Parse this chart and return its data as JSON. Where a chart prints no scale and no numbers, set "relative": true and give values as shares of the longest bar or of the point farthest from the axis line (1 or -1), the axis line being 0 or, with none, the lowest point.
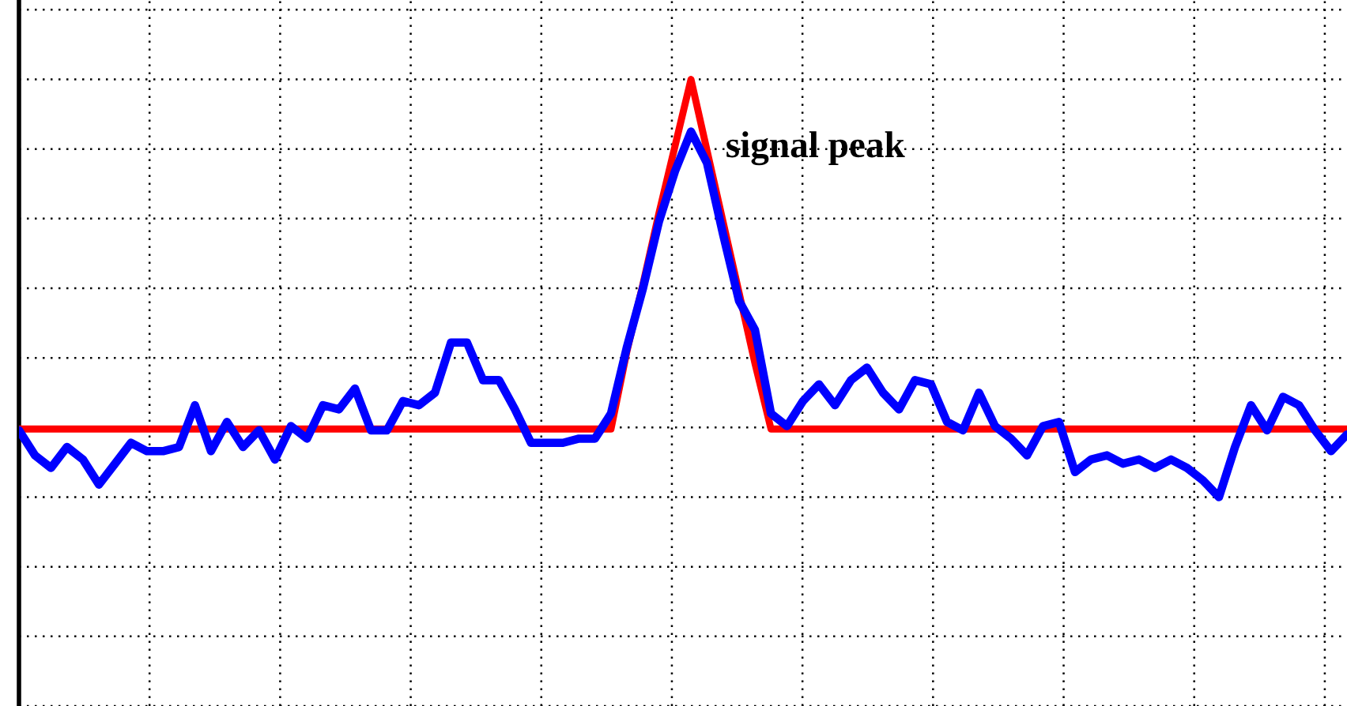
{
  "chart_data": {
    "type": "line",
    "relative": true,
    "grid": true,
    "line_style": "solid",
    "categories": [
      null,
      null,
      null,
      null,
      null,
      null,
      null,
      null,
      null,
      null,
      null,
      null,
      null,
      null,
      null,
      null,
      null,
      null,
      null,
      null,
      null,
      null,
      null,
      null,
      null,
      null,
      null,
      null,
      null,
      null,
      null,
      null,
      null,
      null,
      null,
      null,
      null,
      null,
      null,
      null,
      null,
      null,
      null,
      null,
      null,
      null,
      null,
      null,
      null,
      null,
      null,
      null,
      null,
      null,
      null,
      null,
      null,
      null,
      null,
      null,
      null,
      null,
      null,
      null,
      null,
      null,
      null,
      null,
      null,
      null,
      null,
      null,
      null,
      null,
      null,
      null,
      null,
      null,
      null,
      null,
      null,
      null,
      null,
      null
    ],
    "series": [
      {
        "color": "#ff0000",
        "values": [
          0.163,
          0.163,
          0.163,
          0.163,
          0.163,
          0.163,
          0.163,
          0.163,
          0.163,
          0.163,
          0.163,
          0.163,
          0.163,
          0.163,
          0.163,
          0.163,
          0.163,
          0.163,
          0.163,
          0.163,
          0.163,
          0.163,
          0.163,
          0.163,
          0.163,
          0.163,
          0.163,
          0.163,
          0.163,
          0.163,
          0.163,
          0.163,
          0.163,
          0.163,
          0.163,
          0.163,
          0.163,
          0.163,
          0.35,
          0.51,
          0.68,
          0.84,
          1,
          0.83,
          0.66,
          0.49,
          0.32,
          0.163,
          0.163,
          0.163,
          0.163,
          0.163,
          0.163,
          0.163,
          0.163,
          0.163,
          0.163,
          0.163,
          0.163,
          0.163,
          0.163,
          0.163,
          0.163,
          0.163,
          0.163,
          0.163,
          0.163,
          0.163,
          0.163,
          0.163,
          0.163,
          0.163,
          0.163,
          0.163,
          0.163,
          0.163,
          0.163,
          0.163,
          0.163,
          0.163,
          0.163,
          0.163,
          0.163,
          0.163
        ]
      },
      {
        "color": "#0000ff",
        "values": [
          0.16,
          0.1,
          0.07,
          0.12,
          0.09,
          0.03,
          0.08,
          0.13,
          0.11,
          0.11,
          0.12,
          0.22,
          0.11,
          0.18,
          0.12,
          0.16,
          0.09,
          0.17,
          0.14,
          0.22,
          0.21,
          0.26,
          0.16,
          0.16,
          0.23,
          0.22,
          0.25,
          0.37,
          0.37,
          0.28,
          0.28,
          0.21,
          0.13,
          0.13,
          0.13,
          0.14,
          0.14,
          0.2,
          0.36,
          0.5,
          0.66,
          0.78,
          0.875,
          0.8,
          0.63,
          0.47,
          0.4,
          0.2,
          0.17,
          0.23,
          0.27,
          0.22,
          0.28,
          0.31,
          0.25,
          0.21,
          0.28,
          0.27,
          0.18,
          0.16,
          0.25,
          0.17,
          0.14,
          0.1,
          0.17,
          0.18,
          0.06,
          0.09,
          0.1,
          0.08,
          0.09,
          0.07,
          0.09,
          0.07,
          0.04,
          0,
          0.12,
          0.22,
          0.16,
          0.24,
          0.22,
          0.16,
          0.11,
          0.15
        ]
      }
    ],
    "annotations": [
      "signal peak"
    ]
  }
}
